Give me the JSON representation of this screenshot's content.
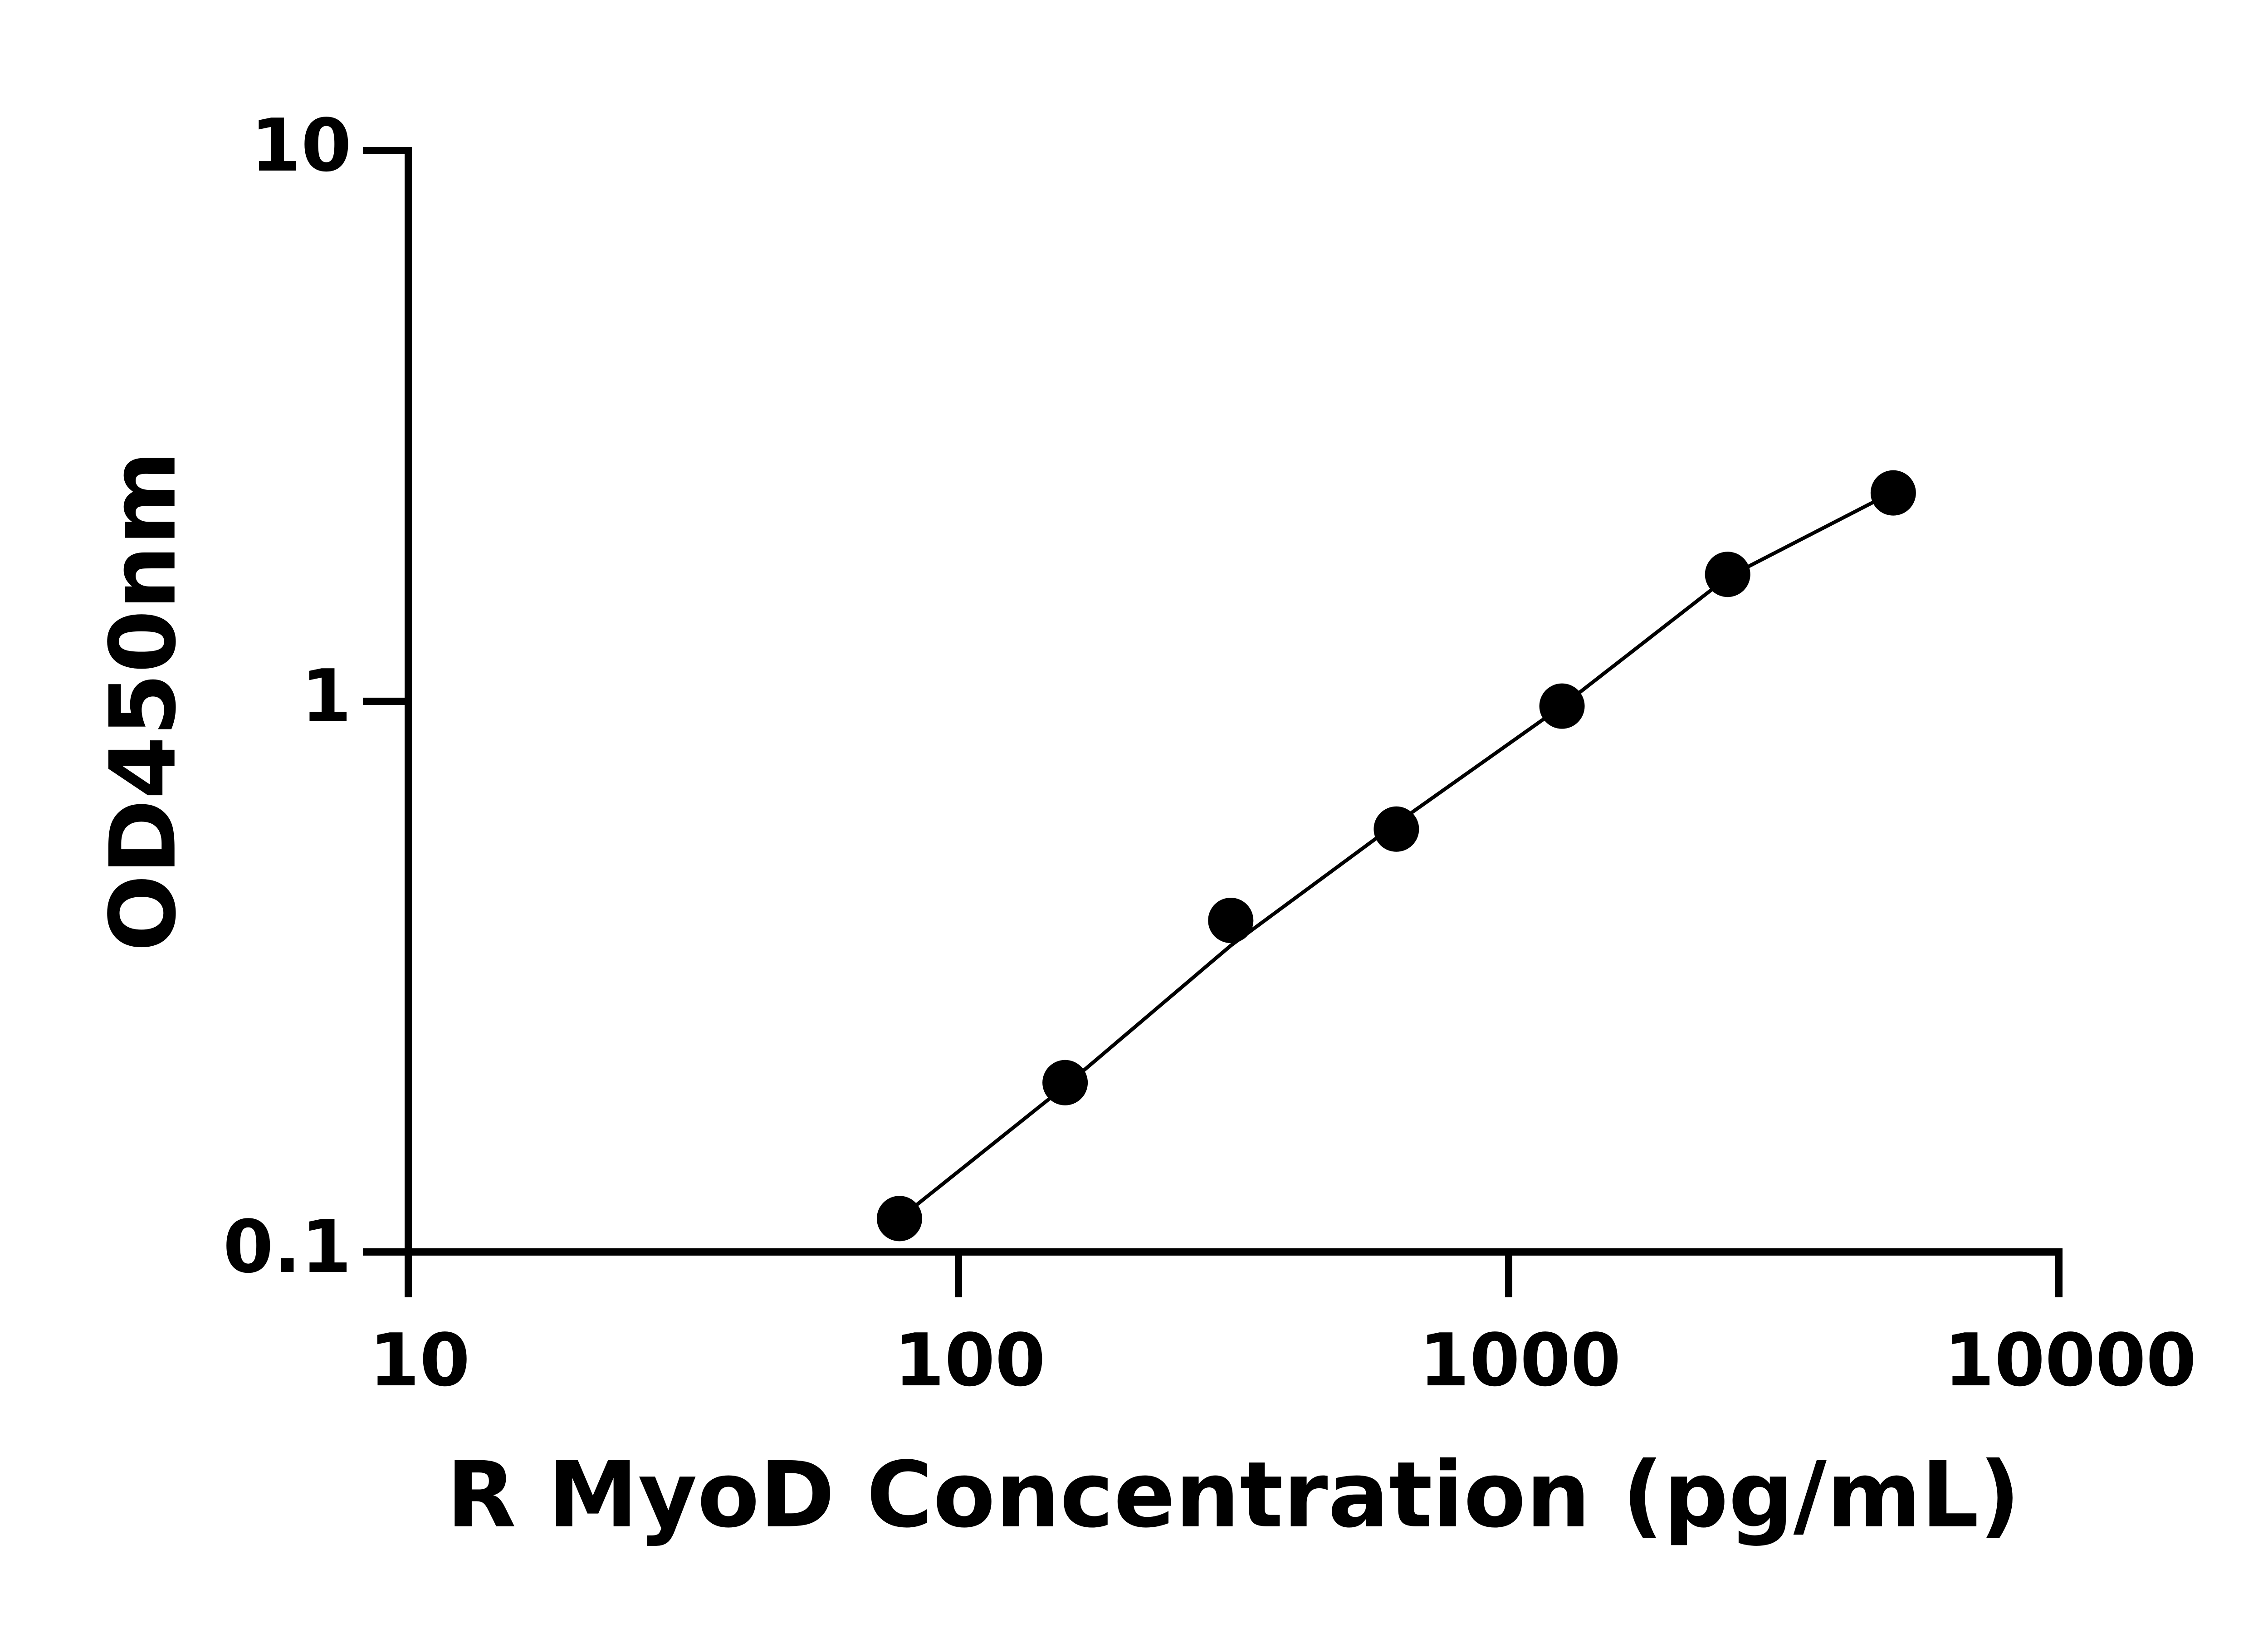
{
  "chart_data": {
    "type": "scatter",
    "xlabel": "R MyoD Concentration (pg/mL)",
    "ylabel": "OD450nm",
    "x": [
      78.125,
      156.25,
      312.5,
      625,
      1250,
      2500,
      5000
    ],
    "series": [
      {
        "color": "#000000",
        "style": "line",
        "values": [
          0.115,
          0.2,
          0.36,
          0.6,
          0.98,
          1.68,
          2.4
        ]
      },
      {
        "color": "#000000",
        "style": "markers",
        "values": [
          0.115,
          0.203,
          0.4,
          0.586,
          0.98,
          1.7,
          2.39
        ]
      }
    ],
    "xlim": [
      10,
      10000
    ],
    "xticks": [
      10,
      100,
      1000,
      10000
    ],
    "xlog": true,
    "ylim": [
      0.1,
      10
    ],
    "yticks": [
      0.1,
      1,
      10
    ],
    "ylog": true,
    "grid": false
  }
}
